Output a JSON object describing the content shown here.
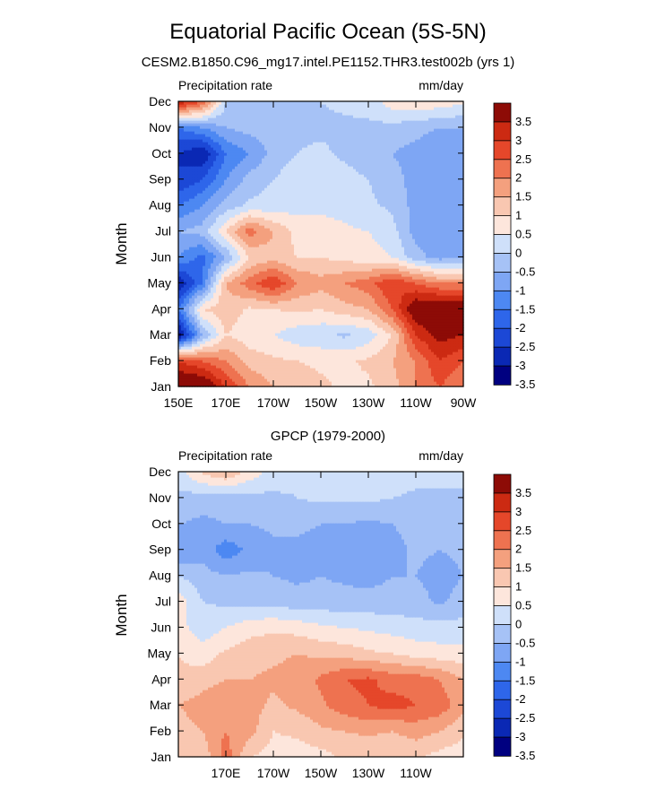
{
  "title": "Equatorial Pacific Ocean (5S-5N)",
  "subtitle": "CESM2.B1850.C96_mg17.intel.PE1152.THR3.test002b (yrs 1)",
  "colors": [
    "#000080",
    "#0a28b4",
    "#1c48d6",
    "#2e66ea",
    "#4d88f2",
    "#7ea6f4",
    "#a6c2f6",
    "#cfe0fa",
    "#fde6dc",
    "#f9c7b1",
    "#f4a07e",
    "#ee7250",
    "#e5472a",
    "#cc2a12",
    "#8d0b06"
  ],
  "colorbar_labels": [
    "3.5",
    "3",
    "2.5",
    "2",
    "1.5",
    "1",
    "0.5",
    "0",
    "-0.5",
    "-1",
    "-1.5",
    "-2",
    "-2.5",
    "-3",
    "-3.5"
  ],
  "chart_data": [
    {
      "type": "heatmap",
      "panel_title": "",
      "left_label": "Precipitation rate",
      "right_label": "mm/day",
      "ylabel": "Month",
      "x_ticks": [
        "150E",
        "170E",
        "170W",
        "150W",
        "130W",
        "110W",
        "90W"
      ],
      "y_ticks": [
        "Jan",
        "Feb",
        "Mar",
        "Apr",
        "May",
        "Jun",
        "Jul",
        "Aug",
        "Sep",
        "Oct",
        "Nov",
        "Dec"
      ],
      "x_values": [
        150,
        160,
        170,
        180,
        190,
        200,
        210,
        220,
        230,
        240,
        250,
        260,
        270
      ],
      "months": [
        1,
        2,
        3,
        4,
        5,
        6,
        7,
        8,
        9,
        10,
        11,
        12
      ],
      "z": [
        [
          3.8,
          3.8,
          2.5,
          1.5,
          1.0,
          0.8,
          0.6,
          0.4,
          0.4,
          0.8,
          1.5,
          2.0,
          1.5
        ],
        [
          2.5,
          2.0,
          1.5,
          0.8,
          0.6,
          0.5,
          0.4,
          0.4,
          0.6,
          1.0,
          1.5,
          2.5,
          2.0
        ],
        [
          -3.8,
          -1.0,
          0.5,
          0.2,
          0.0,
          -0.3,
          -0.4,
          -0.6,
          -0.3,
          0.5,
          2.5,
          3.2,
          3.0
        ],
        [
          -2.0,
          0.5,
          0.8,
          0.4,
          0.5,
          0.6,
          0.5,
          0.8,
          1.0,
          2.0,
          3.6,
          3.8,
          3.8
        ],
        [
          -3.5,
          -2.0,
          1.0,
          1.8,
          2.5,
          1.5,
          1.2,
          1.5,
          1.8,
          2.5,
          2.0,
          1.5,
          1.5
        ],
        [
          -1.5,
          -2.2,
          -1.0,
          0.5,
          0.8,
          0.5,
          0.5,
          0.3,
          0.2,
          0.0,
          -0.8,
          -1.2,
          -1.0
        ],
        [
          -1.0,
          -0.8,
          0.5,
          1.8,
          1.0,
          0.3,
          0.2,
          0.1,
          0.0,
          -0.3,
          -1.2,
          -1.5,
          -1.5
        ],
        [
          -2.0,
          -1.5,
          -0.8,
          -0.4,
          -0.3,
          -0.2,
          -0.1,
          -0.2,
          -0.4,
          -0.6,
          -1.2,
          -1.5,
          -1.5
        ],
        [
          -3.0,
          -2.5,
          -1.5,
          -0.8,
          -0.5,
          -0.2,
          -0.1,
          -0.3,
          -0.5,
          -0.8,
          -1.2,
          -1.5,
          -1.5
        ],
        [
          -3.0,
          -3.5,
          -2.0,
          -1.5,
          -0.8,
          -0.5,
          -0.4,
          -0.6,
          -0.8,
          -1.0,
          -1.2,
          -1.5,
          -1.5
        ],
        [
          -2.0,
          -1.5,
          -1.0,
          -0.8,
          -0.8,
          -0.6,
          -0.6,
          -0.6,
          -0.6,
          -0.7,
          -0.8,
          -1.0,
          -1.0
        ],
        [
          3.0,
          2.0,
          -0.5,
          -1.0,
          -0.8,
          -0.6,
          -0.5,
          -0.4,
          -0.3,
          0.3,
          0.4,
          0.3,
          0.1
        ]
      ]
    },
    {
      "type": "heatmap",
      "panel_title": "GPCP (1979-2000)",
      "left_label": "Precipitation rate",
      "right_label": "mm/day",
      "ylabel": "Month",
      "x_ticks": [
        "170E",
        "170W",
        "150W",
        "130W",
        "110W"
      ],
      "y_ticks": [
        "Jan",
        "Feb",
        "Mar",
        "Apr",
        "May",
        "Jun",
        "Jul",
        "Aug",
        "Sep",
        "Oct",
        "Nov",
        "Dec"
      ],
      "x_values": [
        150,
        160,
        170,
        180,
        190,
        200,
        210,
        220,
        230,
        240,
        250,
        260,
        270
      ],
      "months": [
        1,
        2,
        3,
        4,
        5,
        6,
        7,
        8,
        9,
        10,
        11,
        12
      ],
      "z": [
        [
          0.5,
          0.6,
          1.8,
          0.5,
          0.3,
          0.2,
          0.3,
          0.6,
          0.5,
          0.5,
          0.6,
          0.3,
          0.2
        ],
        [
          0.8,
          1.0,
          1.5,
          1.2,
          0.5,
          0.6,
          0.9,
          1.0,
          1.1,
          1.0,
          1.2,
          1.0,
          0.6
        ],
        [
          1.0,
          1.2,
          1.5,
          1.2,
          0.9,
          1.1,
          1.4,
          1.8,
          2.0,
          2.2,
          2.0,
          1.8,
          1.2
        ],
        [
          0.6,
          0.8,
          1.0,
          1.0,
          1.1,
          1.2,
          1.6,
          2.0,
          2.1,
          1.8,
          1.8,
          1.5,
          1.0
        ],
        [
          0.5,
          0.2,
          0.6,
          0.8,
          0.9,
          1.0,
          0.9,
          0.8,
          0.6,
          0.5,
          0.3,
          0.2,
          0.2
        ],
        [
          0.2,
          -0.3,
          0.0,
          0.3,
          0.4,
          0.3,
          0.1,
          0.0,
          -0.1,
          -0.2,
          -0.3,
          -0.3,
          -0.3
        ],
        [
          0.3,
          -0.5,
          -0.6,
          -0.7,
          -0.7,
          -0.8,
          -0.8,
          -0.8,
          -0.8,
          -0.8,
          -0.8,
          -1.1,
          -0.8
        ],
        [
          -0.5,
          -0.8,
          -1.0,
          -0.9,
          -1.0,
          -1.1,
          -1.0,
          -1.1,
          -1.2,
          -1.0,
          -1.0,
          -1.2,
          -1.0
        ],
        [
          -1.5,
          -1.2,
          -1.8,
          -1.4,
          -1.1,
          -1.1,
          -1.2,
          -1.2,
          -1.2,
          -1.2,
          -0.9,
          -1.0,
          -0.9
        ],
        [
          -1.0,
          -1.1,
          -1.0,
          -1.0,
          -0.9,
          -0.9,
          -1.0,
          -1.0,
          -1.1,
          -1.0,
          -0.8,
          -0.8,
          -0.8
        ],
        [
          -0.6,
          -0.8,
          -0.8,
          -0.7,
          -0.6,
          -0.5,
          -0.4,
          -0.4,
          -0.4,
          -0.5,
          -0.6,
          -0.6,
          -0.6
        ],
        [
          -0.2,
          0.6,
          1.0,
          0.3,
          -0.2,
          -0.4,
          -0.3,
          -0.2,
          -0.1,
          -0.2,
          -0.3,
          -0.3,
          -0.3
        ]
      ]
    }
  ]
}
